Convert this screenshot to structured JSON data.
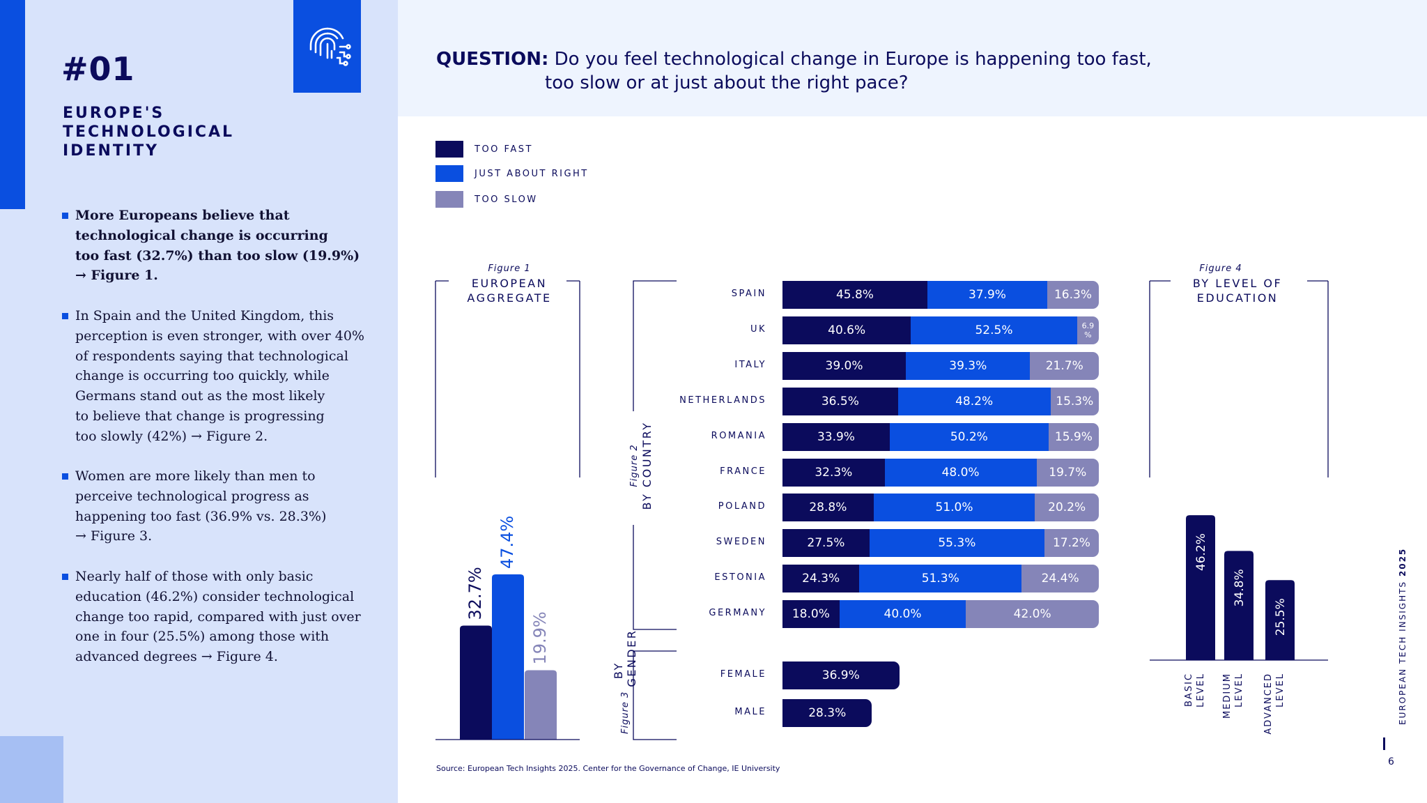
{
  "left": {
    "section_number": "#01",
    "section_title": [
      "EUROPE'S",
      "TECHNOLOGICAL",
      "IDENTITY"
    ],
    "bullets": [
      {
        "bold": true,
        "lines": [
          "More Europeans believe that",
          "technological change is occurring",
          "too fast (32.7%) than too slow (19.9%)",
          "→ Figure 1."
        ]
      },
      {
        "bold": false,
        "lines": [
          "In Spain and the United Kingdom, this",
          "perception is even stronger, with over 40%",
          "of respondents saying that technological",
          "change is occurring too quickly, while",
          "Germans stand out as the most likely",
          "to believe that change is progressing",
          "too slowly (42%) → Figure 2."
        ]
      },
      {
        "bold": false,
        "lines": [
          "Women are more likely than men to",
          "perceive technological progress as",
          "happening too fast (36.9% vs. 28.3%)",
          "→ Figure 3."
        ]
      },
      {
        "bold": false,
        "lines": [
          "Nearly half of those with only basic",
          "education (46.2%) consider technological",
          "change too rapid, compared with just over",
          "one in four (25.5%) among those with",
          "advanced degrees → Figure 4."
        ]
      }
    ],
    "icon_name": "fingerprint-circuit-icon"
  },
  "question": {
    "label": "QUESTION:",
    "line1": "Do you feel technological change in Europe is happening too fast,",
    "line2": "too slow or at just about the right pace?"
  },
  "source": "Source: European Tech Insights 2025. Center for the Governance of Change, IE University",
  "side_caption": {
    "text": "EUROPEAN TECH INSIGHTS",
    "year": "2025"
  },
  "page_number": "6",
  "colors": {
    "too_fast": "#0b0b5c",
    "just_right": "#0a4fe0",
    "too_slow": "#8585b8",
    "accent": "#0a4fe0",
    "panel": "#d8e3fb"
  },
  "chart_data": [
    {
      "type": "bar",
      "figure_label": "Figure 1",
      "title": "EUROPEAN AGGREGATE",
      "series": [
        {
          "name": "TOO FAST",
          "values": [
            32.7
          ]
        },
        {
          "name": "JUST ABOUT RIGHT",
          "values": [
            47.4
          ]
        },
        {
          "name": "TOO SLOW",
          "values": [
            19.9
          ]
        }
      ],
      "data_labels": [
        "32.7%",
        "47.4%",
        "19.9%"
      ]
    },
    {
      "type": "bar",
      "orientation": "horizontal",
      "stacked": true,
      "figure_label": "Figure 2",
      "title": "BY COUNTRY",
      "categories": [
        "SPAIN",
        "UK",
        "ITALY",
        "NETHERLANDS",
        "ROMANIA",
        "FRANCE",
        "POLAND",
        "SWEDEN",
        "ESTONIA",
        "GERMANY"
      ],
      "series": [
        {
          "name": "TOO FAST",
          "values": [
            45.8,
            40.6,
            39.0,
            36.5,
            33.9,
            32.3,
            28.8,
            27.5,
            24.3,
            18.0
          ]
        },
        {
          "name": "JUST ABOUT RIGHT",
          "values": [
            37.9,
            52.5,
            39.3,
            48.2,
            50.2,
            48.0,
            51.0,
            55.3,
            51.3,
            40.0
          ]
        },
        {
          "name": "TOO SLOW",
          "values": [
            16.3,
            6.9,
            21.7,
            15.3,
            15.9,
            19.7,
            20.2,
            17.2,
            24.4,
            42.0
          ]
        }
      ],
      "data_labels": [
        [
          "45.8%",
          "37.9%",
          "16.3%"
        ],
        [
          "40.6%",
          "52.5%",
          "6.9 %"
        ],
        [
          "39.0%",
          "39.3%",
          "21.7%"
        ],
        [
          "36.5%",
          "48.2%",
          "15.3%"
        ],
        [
          "33.9%",
          "50.2%",
          "15.9%"
        ],
        [
          "32.3%",
          "48.0%",
          "19.7%"
        ],
        [
          "28.8%",
          "51.0%",
          "20.2%"
        ],
        [
          "27.5%",
          "55.3%",
          "17.2%"
        ],
        [
          "24.3%",
          "51.3%",
          "24.4%"
        ],
        [
          "18.0%",
          "40.0%",
          "42.0%"
        ]
      ],
      "xlim": [
        0,
        100
      ]
    },
    {
      "type": "bar",
      "orientation": "horizontal",
      "figure_label": "Figure 3",
      "title": "BY GENDER",
      "categories": [
        "FEMALE",
        "MALE"
      ],
      "series": [
        {
          "name": "TOO FAST",
          "values": [
            36.9,
            28.3
          ]
        }
      ],
      "data_labels": [
        "36.9%",
        "28.3%"
      ]
    },
    {
      "type": "bar",
      "figure_label": "Figure 4",
      "title": "BY LEVEL OF EDUCATION",
      "categories": [
        "BASIC LEVEL",
        "MEDIUM LEVEL",
        "ADVANCED LEVEL"
      ],
      "series": [
        {
          "name": "TOO FAST",
          "values": [
            46.2,
            34.8,
            25.5
          ]
        }
      ],
      "data_labels": [
        "46.2%",
        "34.8%",
        "25.5%"
      ]
    }
  ]
}
